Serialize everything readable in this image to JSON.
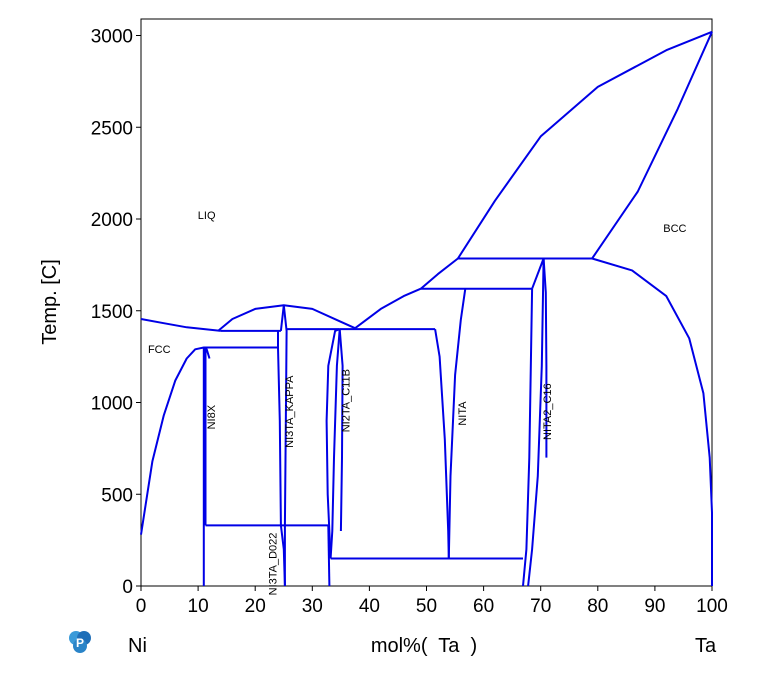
{
  "chart_data": {
    "type": "line",
    "xlabel": "mol%(  Ta  )",
    "ylabel": "Temp.  [C]",
    "x_left_label": "Ni",
    "x_right_label": "Ta",
    "xlim": [
      0,
      100
    ],
    "ylim": [
      0,
      3100
    ],
    "xticks": [
      0,
      10,
      20,
      30,
      40,
      50,
      60,
      70,
      80,
      90,
      100
    ],
    "yticks": [
      0,
      500,
      1000,
      1500,
      2000,
      2500,
      3000
    ],
    "line_color": "#0000e6",
    "grid": false,
    "logo_icon": "pandat-logo-icon",
    "phase_labels": [
      {
        "text": "LIQ",
        "x": 11.5,
        "y": 2000,
        "rotation": 0
      },
      {
        "text": "BCC",
        "x": 93.5,
        "y": 1930,
        "rotation": 0
      },
      {
        "text": "FCC",
        "x": 3.2,
        "y": 1270,
        "rotation": 0
      },
      {
        "text": "NI8X",
        "x": 13.0,
        "y": 920,
        "rotation": -90
      },
      {
        "text": "NI3TA_KAPPA",
        "x": 26.6,
        "y": 950,
        "rotation": -90
      },
      {
        "text": "NI2TA_C11B",
        "x": 36.5,
        "y": 1010,
        "rotation": -90
      },
      {
        "text": "NITA",
        "x": 56.9,
        "y": 940,
        "rotation": -90
      },
      {
        "text": "NITA2_C16",
        "x": 71.8,
        "y": 950,
        "rotation": -90
      },
      {
        "text": "NI3TA_D022",
        "x": 23.7,
        "y": 120,
        "rotation": -90
      }
    ],
    "series": [
      {
        "points": [
          [
            0,
            1455
          ],
          [
            4,
            1432
          ],
          [
            8,
            1410
          ],
          [
            14,
            1390
          ]
        ]
      },
      {
        "points": [
          [
            13.5,
            1390
          ],
          [
            16,
            1455
          ],
          [
            20,
            1510
          ],
          [
            25,
            1530
          ],
          [
            30,
            1510
          ],
          [
            35,
            1440
          ],
          [
            37.5,
            1405
          ]
        ]
      },
      {
        "points": [
          [
            37.5,
            1405
          ],
          [
            42,
            1510
          ],
          [
            46,
            1580
          ],
          [
            49,
            1620
          ]
        ]
      },
      {
        "points": [
          [
            49,
            1620
          ],
          [
            52,
            1700
          ],
          [
            55.5,
            1785
          ]
        ]
      },
      {
        "points": [
          [
            55.5,
            1785
          ],
          [
            62,
            2100
          ],
          [
            70,
            2450
          ],
          [
            80,
            2720
          ],
          [
            92,
            2920
          ],
          [
            100,
            3020
          ]
        ]
      },
      {
        "points": [
          [
            100,
            3020
          ],
          [
            94,
            2600
          ],
          [
            87,
            2150
          ],
          [
            79,
            1785
          ]
        ]
      },
      {
        "points": [
          [
            79,
            1785
          ],
          [
            86,
            1720
          ],
          [
            92,
            1580
          ],
          [
            96,
            1350
          ],
          [
            98.5,
            1050
          ],
          [
            99.6,
            700
          ],
          [
            100,
            400
          ],
          [
            100,
            0
          ]
        ]
      },
      {
        "points": [
          [
            0,
            280
          ],
          [
            2,
            680
          ],
          [
            4,
            930
          ],
          [
            6,
            1120
          ],
          [
            8,
            1240
          ],
          [
            9.5,
            1290
          ],
          [
            11,
            1300
          ],
          [
            11.5,
            1290
          ],
          [
            12,
            1240
          ]
        ]
      },
      {
        "points": [
          [
            11,
            1300
          ],
          [
            11,
            0
          ]
        ]
      },
      {
        "points": [
          [
            11.3,
            1300
          ],
          [
            11.3,
            330
          ]
        ]
      },
      {
        "points": [
          [
            11,
            1300
          ],
          [
            24,
            1300
          ]
        ]
      },
      {
        "points": [
          [
            24,
            1300
          ],
          [
            24,
            1390
          ]
        ]
      },
      {
        "points": [
          [
            14,
            1390
          ],
          [
            24.5,
            1390
          ]
        ]
      },
      {
        "points": [
          [
            24,
            1300
          ],
          [
            24.3,
            900
          ],
          [
            24.5,
            330
          ]
        ]
      },
      {
        "points": [
          [
            11.3,
            330
          ],
          [
            32.8,
            330
          ]
        ]
      },
      {
        "points": [
          [
            25,
            1530
          ],
          [
            24.5,
            1390
          ]
        ]
      },
      {
        "points": [
          [
            25,
            1530
          ],
          [
            25.5,
            1390
          ],
          [
            25.4,
            1000
          ],
          [
            25.2,
            330
          ],
          [
            25.2,
            0
          ]
        ]
      },
      {
        "points": [
          [
            24.5,
            330
          ],
          [
            25,
            200
          ],
          [
            25.2,
            0
          ]
        ]
      },
      {
        "points": [
          [
            25.5,
            1400
          ],
          [
            34.8,
            1400
          ]
        ]
      },
      {
        "points": [
          [
            32.8,
            330
          ],
          [
            33,
            0
          ]
        ]
      },
      {
        "points": [
          [
            33.2,
            150
          ],
          [
            32.7,
            500
          ],
          [
            32.5,
            900
          ],
          [
            32.8,
            1200
          ],
          [
            34,
            1390
          ],
          [
            34.8,
            1400
          ]
        ]
      },
      {
        "points": [
          [
            34.8,
            1400
          ],
          [
            34.3,
            1200
          ],
          [
            33.8,
            700
          ],
          [
            33.5,
            300
          ],
          [
            33.2,
            150
          ]
        ]
      },
      {
        "points": [
          [
            34.8,
            1400
          ],
          [
            35.3,
            1200
          ],
          [
            35.2,
            700
          ],
          [
            35,
            300
          ]
        ]
      },
      {
        "points": [
          [
            34.8,
            1400
          ],
          [
            51.5,
            1400
          ]
        ]
      },
      {
        "points": [
          [
            51.5,
            1400
          ],
          [
            52.3,
            1250
          ],
          [
            53.2,
            800
          ],
          [
            53.8,
            300
          ],
          [
            53.9,
            150
          ]
        ]
      },
      {
        "points": [
          [
            53.9,
            150
          ],
          [
            54.2,
            600
          ],
          [
            55,
            1150
          ],
          [
            56,
            1450
          ],
          [
            56.8,
            1620
          ]
        ]
      },
      {
        "points": [
          [
            49,
            1620
          ],
          [
            68.5,
            1620
          ]
        ]
      },
      {
        "points": [
          [
            55.5,
            1785
          ],
          [
            79,
            1785
          ]
        ]
      },
      {
        "points": [
          [
            33.2,
            150
          ],
          [
            66.9,
            150
          ]
        ]
      },
      {
        "points": [
          [
            66.9,
            0
          ],
          [
            67.5,
            200
          ],
          [
            68,
            700
          ],
          [
            68.5,
            1620
          ]
        ]
      },
      {
        "points": [
          [
            70.5,
            1785
          ],
          [
            70.2,
            1200
          ],
          [
            69.5,
            600
          ],
          [
            68.5,
            200
          ],
          [
            67.8,
            0
          ]
        ]
      },
      {
        "points": [
          [
            70.5,
            1785
          ],
          [
            70.9,
            1600
          ],
          [
            71,
            1200
          ],
          [
            71,
            700
          ]
        ]
      },
      {
        "points": [
          [
            68.5,
            1620
          ],
          [
            70.5,
            1785
          ]
        ]
      }
    ]
  }
}
